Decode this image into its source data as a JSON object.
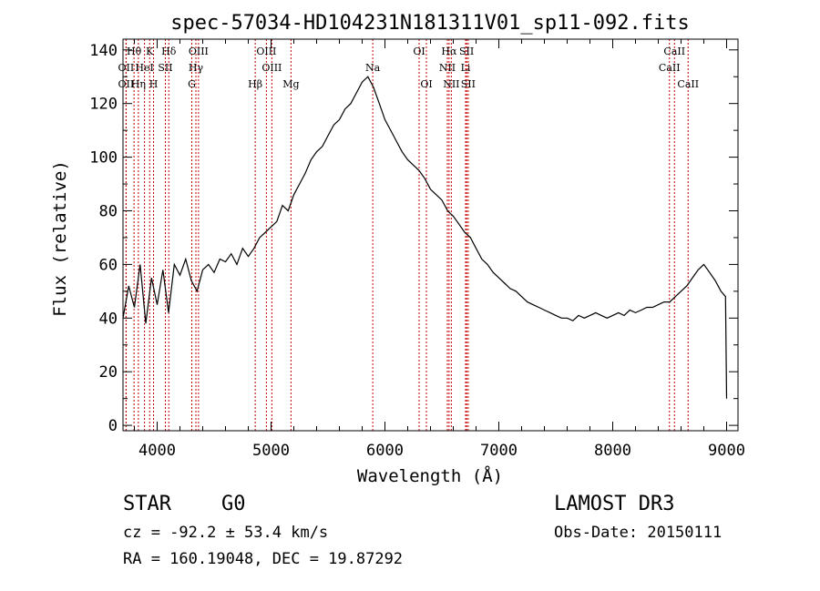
{
  "chart_data": {
    "type": "line",
    "title": "spec-57034-HD104231N181311V01_sp11-092.fits",
    "xlabel": "Wavelength (Å)",
    "ylabel": "Flux (relative)",
    "xlim": [
      3700,
      9100
    ],
    "ylim": [
      -2,
      144
    ],
    "xticks": [
      4000,
      5000,
      6000,
      7000,
      8000,
      9000
    ],
    "yticks": [
      0,
      20,
      40,
      60,
      80,
      100,
      120,
      140
    ],
    "grid": false,
    "series": [
      {
        "name": "spectrum",
        "x": [
          3700,
          3750,
          3800,
          3850,
          3900,
          3950,
          4000,
          4050,
          4100,
          4150,
          4200,
          4250,
          4300,
          4350,
          4400,
          4450,
          4500,
          4550,
          4600,
          4650,
          4700,
          4750,
          4800,
          4850,
          4900,
          4950,
          5000,
          5050,
          5100,
          5150,
          5200,
          5250,
          5300,
          5350,
          5400,
          5450,
          5500,
          5550,
          5600,
          5650,
          5700,
          5750,
          5800,
          5850,
          5900,
          5950,
          6000,
          6050,
          6100,
          6150,
          6200,
          6250,
          6300,
          6350,
          6400,
          6450,
          6500,
          6550,
          6600,
          6650,
          6700,
          6750,
          6800,
          6850,
          6900,
          6950,
          7000,
          7050,
          7100,
          7150,
          7200,
          7250,
          7300,
          7350,
          7400,
          7450,
          7500,
          7550,
          7600,
          7650,
          7700,
          7750,
          7800,
          7850,
          7900,
          7950,
          8000,
          8050,
          8100,
          8150,
          8200,
          8250,
          8300,
          8350,
          8400,
          8450,
          8500,
          8550,
          8600,
          8650,
          8700,
          8750,
          8800,
          8850,
          8900,
          8950,
          8990,
          9000
        ],
        "values": [
          40,
          52,
          44,
          60,
          38,
          55,
          45,
          58,
          42,
          60,
          56,
          62,
          54,
          50,
          58,
          60,
          57,
          62,
          61,
          64,
          60,
          66,
          63,
          66,
          70,
          72,
          74,
          76,
          82,
          80,
          86,
          90,
          94,
          99,
          102,
          104,
          108,
          112,
          114,
          118,
          120,
          124,
          128,
          130,
          126,
          120,
          114,
          110,
          106,
          102,
          99,
          97,
          95,
          92,
          88,
          86,
          84,
          80,
          78,
          75,
          72,
          70,
          66,
          62,
          60,
          57,
          55,
          53,
          51,
          50,
          48,
          46,
          45,
          44,
          43,
          42,
          41,
          40,
          40,
          39,
          41,
          40,
          41,
          42,
          41,
          40,
          41,
          42,
          41,
          43,
          42,
          43,
          44,
          44,
          45,
          46,
          46,
          48,
          50,
          52,
          55,
          58,
          60,
          57,
          54,
          50,
          48,
          10
        ]
      }
    ],
    "lines": [
      {
        "label": "Hθ",
        "x": 3797,
        "row": 1
      },
      {
        "label": "K",
        "x": 3934,
        "row": 1
      },
      {
        "label": "Hδ",
        "x": 4102,
        "row": 1
      },
      {
        "label": "OIII",
        "x": 4363,
        "row": 1
      },
      {
        "label": "OIII",
        "x": 4959,
        "row": 1
      },
      {
        "label": "OI",
        "x": 6300,
        "row": 1
      },
      {
        "label": "Hα",
        "x": 6563,
        "row": 1
      },
      {
        "label": "SII",
        "x": 6717,
        "row": 1
      },
      {
        "label": "CaII",
        "x": 8542,
        "row": 1
      },
      {
        "label": "OII",
        "x": 3727,
        "row": 2
      },
      {
        "label": "HeI",
        "x": 3889,
        "row": 2
      },
      {
        "label": "SII",
        "x": 4072,
        "row": 2
      },
      {
        "label": "Hγ",
        "x": 4340,
        "row": 2
      },
      {
        "label": "OIII",
        "x": 5007,
        "row": 2
      },
      {
        "label": "Na",
        "x": 5893,
        "row": 2
      },
      {
        "label": "NII",
        "x": 6548,
        "row": 2
      },
      {
        "label": "Li",
        "x": 6708,
        "row": 2
      },
      {
        "label": "CaII",
        "x": 8498,
        "row": 2
      },
      {
        "label": "OII",
        "x": 3727,
        "row": 3
      },
      {
        "label": "Hη",
        "x": 3835,
        "row": 3
      },
      {
        "label": "H",
        "x": 3968,
        "row": 3
      },
      {
        "label": "G",
        "x": 4304,
        "row": 3
      },
      {
        "label": "Hβ",
        "x": 4861,
        "row": 3
      },
      {
        "label": "Mg",
        "x": 5175,
        "row": 3
      },
      {
        "label": "OI",
        "x": 6364,
        "row": 3
      },
      {
        "label": "NII",
        "x": 6583,
        "row": 3
      },
      {
        "label": "SII",
        "x": 6731,
        "row": 3
      },
      {
        "label": "CaII",
        "x": 8662,
        "row": 3
      }
    ],
    "line_color": "#c00000"
  },
  "info": {
    "class": "STAR",
    "subclass": "G0",
    "survey": "LAMOST DR3",
    "cz": "cz = -92.2 ± 53.4 km/s",
    "obs_date": "Obs-Date: 20150111",
    "coords": "RA = 160.19048, DEC =  19.87292"
  }
}
